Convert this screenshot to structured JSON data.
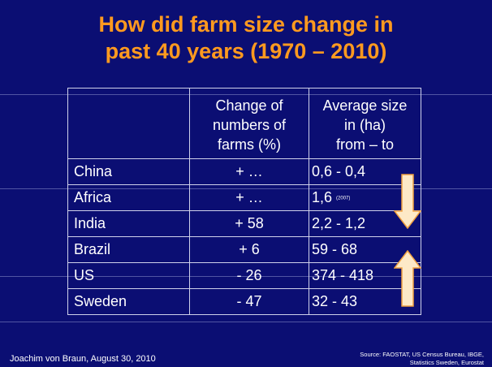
{
  "slide": {
    "title_line1": "How did farm size change in",
    "title_line2": "past 40 years (1970 – 2010)",
    "footer_author": "Joachim von Braun, August 30,  2010",
    "footer_source_line1": "Source: FAOSTAT, US Census Bureau, IBGE,",
    "footer_source_line2": "Statistics Sweden, Eurostat"
  },
  "table": {
    "header": {
      "col2_line1": "Change of",
      "col2_line2": "numbers of",
      "col2_line3": "farms  (%)",
      "col3_line1": "Average size",
      "col3_line2": "in (ha)",
      "col3_line3": "from – to"
    },
    "rows": [
      {
        "country": "China",
        "change": "+ …",
        "size": "0,6 - 0,4",
        "note": ""
      },
      {
        "country": "Africa",
        "change": "+ …",
        "size": "1,6",
        "note": "(2007)"
      },
      {
        "country": "India",
        "change": "+ 58",
        "size": "2,2 - 1,2",
        "note": ""
      },
      {
        "country": "Brazil",
        "change": "+   6",
        "size": "59 - 68",
        "note": ""
      },
      {
        "country": "US",
        "change": "-  26",
        "size": "374 - 418",
        "note": ""
      },
      {
        "country": "Sweden",
        "change": "-  47",
        "size": "32 - 43",
        "note": ""
      }
    ]
  },
  "colors": {
    "background": "#0b0e73",
    "title": "#ff9a1f",
    "arrow_fill": "#fde9c7",
    "arrow_stroke": "#f0a040"
  },
  "icons": [
    "arrow-down-icon",
    "arrow-up-icon"
  ]
}
